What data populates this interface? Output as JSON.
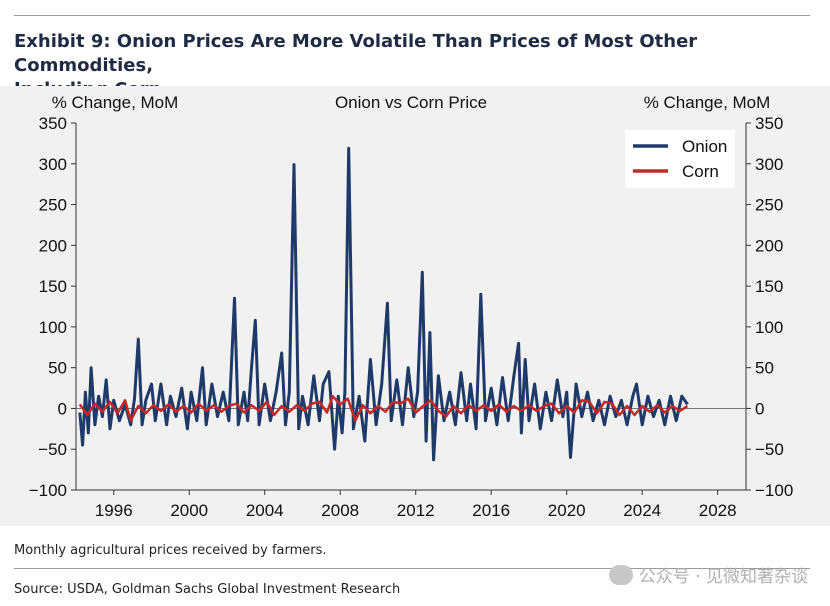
{
  "header": {
    "title_line1": "Exhibit 9: Onion Prices Are More Volatile Than Prices of Most Other Commodities,",
    "title_line2": "Including Corn"
  },
  "footer": {
    "note": "Monthly agricultural prices received by farmers.",
    "source": "Source: USDA, Goldman Sachs Global Investment Research",
    "watermark": "公众号 · 见微知著杂谈"
  },
  "chart_data": {
    "type": "line",
    "title": "Onion vs Corn Price",
    "ylabel_left": "% Change, MoM",
    "ylabel_right": "% Change, MoM",
    "ylim": [
      -100,
      350
    ],
    "xlim": [
      1994.0,
      2029.5
    ],
    "yticks": [
      -100,
      -50,
      0,
      50,
      100,
      150,
      200,
      250,
      300,
      350
    ],
    "xticks": [
      1996,
      2000,
      2004,
      2008,
      2012,
      2016,
      2020,
      2024,
      2028
    ],
    "legend_position": "top-right",
    "grid": false,
    "series": [
      {
        "name": "Onion",
        "color": "#1f3a68",
        "points": [
          [
            1994.2,
            -5
          ],
          [
            1994.35,
            -45
          ],
          [
            1994.5,
            20
          ],
          [
            1994.65,
            -30
          ],
          [
            1994.8,
            50
          ],
          [
            1995.0,
            -20
          ],
          [
            1995.2,
            15
          ],
          [
            1995.4,
            -10
          ],
          [
            1995.6,
            35
          ],
          [
            1995.8,
            -25
          ],
          [
            1996.0,
            10
          ],
          [
            1996.3,
            -15
          ],
          [
            1996.6,
            5
          ],
          [
            1996.9,
            -20
          ],
          [
            1997.1,
            12
          ],
          [
            1997.3,
            85
          ],
          [
            1997.5,
            -20
          ],
          [
            1997.7,
            10
          ],
          [
            1998.0,
            30
          ],
          [
            1998.2,
            -15
          ],
          [
            1998.5,
            30
          ],
          [
            1998.8,
            -20
          ],
          [
            1999.0,
            15
          ],
          [
            1999.3,
            -10
          ],
          [
            1999.6,
            25
          ],
          [
            1999.9,
            -25
          ],
          [
            2000.1,
            20
          ],
          [
            2000.4,
            -15
          ],
          [
            2000.7,
            50
          ],
          [
            2000.9,
            -20
          ],
          [
            2001.2,
            30
          ],
          [
            2001.5,
            -10
          ],
          [
            2001.8,
            20
          ],
          [
            2002.1,
            -15
          ],
          [
            2002.4,
            135
          ],
          [
            2002.6,
            -20
          ],
          [
            2002.9,
            20
          ],
          [
            2003.1,
            -15
          ],
          [
            2003.3,
            50
          ],
          [
            2003.5,
            108
          ],
          [
            2003.7,
            -20
          ],
          [
            2004.0,
            30
          ],
          [
            2004.3,
            -15
          ],
          [
            2004.6,
            20
          ],
          [
            2004.9,
            68
          ],
          [
            2005.1,
            -20
          ],
          [
            2005.3,
            20
          ],
          [
            2005.55,
            299
          ],
          [
            2005.8,
            -25
          ],
          [
            2006.0,
            15
          ],
          [
            2006.3,
            -20
          ],
          [
            2006.6,
            40
          ],
          [
            2006.9,
            -15
          ],
          [
            2007.1,
            30
          ],
          [
            2007.4,
            45
          ],
          [
            2007.7,
            -50
          ],
          [
            2007.9,
            15
          ],
          [
            2008.1,
            -30
          ],
          [
            2008.25,
            20
          ],
          [
            2008.45,
            319
          ],
          [
            2008.7,
            -25
          ],
          [
            2009.0,
            15
          ],
          [
            2009.3,
            -40
          ],
          [
            2009.6,
            60
          ],
          [
            2009.9,
            -20
          ],
          [
            2010.2,
            30
          ],
          [
            2010.5,
            129
          ],
          [
            2010.7,
            -15
          ],
          [
            2011.0,
            35
          ],
          [
            2011.3,
            -20
          ],
          [
            2011.6,
            50
          ],
          [
            2011.9,
            -10
          ],
          [
            2012.1,
            20
          ],
          [
            2012.35,
            167
          ],
          [
            2012.55,
            -40
          ],
          [
            2012.75,
            93
          ],
          [
            2012.95,
            -63
          ],
          [
            2013.2,
            40
          ],
          [
            2013.5,
            -15
          ],
          [
            2013.8,
            20
          ],
          [
            2014.1,
            -20
          ],
          [
            2014.4,
            44
          ],
          [
            2014.7,
            -15
          ],
          [
            2014.9,
            30
          ],
          [
            2015.2,
            -25
          ],
          [
            2015.45,
            140
          ],
          [
            2015.7,
            -15
          ],
          [
            2016.0,
            25
          ],
          [
            2016.3,
            -20
          ],
          [
            2016.6,
            38
          ],
          [
            2016.9,
            -15
          ],
          [
            2017.2,
            40
          ],
          [
            2017.45,
            80
          ],
          [
            2017.6,
            -30
          ],
          [
            2017.8,
            60
          ],
          [
            2018.0,
            -15
          ],
          [
            2018.3,
            30
          ],
          [
            2018.6,
            -25
          ],
          [
            2018.9,
            20
          ],
          [
            2019.2,
            -15
          ],
          [
            2019.5,
            35
          ],
          [
            2019.8,
            -10
          ],
          [
            2020.0,
            20
          ],
          [
            2020.2,
            -60
          ],
          [
            2020.5,
            30
          ],
          [
            2020.8,
            -10
          ],
          [
            2021.1,
            20
          ],
          [
            2021.4,
            -15
          ],
          [
            2021.7,
            10
          ],
          [
            2022.0,
            -20
          ],
          [
            2022.3,
            15
          ],
          [
            2022.6,
            -10
          ],
          [
            2022.9,
            10
          ],
          [
            2023.2,
            -20
          ],
          [
            2023.5,
            15
          ],
          [
            2023.7,
            30
          ],
          [
            2024.0,
            -20
          ],
          [
            2024.3,
            15
          ],
          [
            2024.6,
            -10
          ],
          [
            2024.9,
            10
          ],
          [
            2025.2,
            -20
          ],
          [
            2025.5,
            15
          ],
          [
            2025.8,
            -15
          ],
          [
            2026.1,
            15
          ],
          [
            2026.4,
            5
          ]
        ]
      },
      {
        "name": "Corn",
        "color": "#c62828",
        "points": [
          [
            1994.2,
            5
          ],
          [
            1994.6,
            -8
          ],
          [
            1995.0,
            6
          ],
          [
            1995.4,
            -4
          ],
          [
            1995.8,
            8
          ],
          [
            1996.2,
            -6
          ],
          [
            1996.6,
            10
          ],
          [
            1996.9,
            -15
          ],
          [
            1997.3,
            3
          ],
          [
            1997.7,
            -6
          ],
          [
            1998.1,
            4
          ],
          [
            1998.5,
            -3
          ],
          [
            1998.9,
            5
          ],
          [
            1999.3,
            -4
          ],
          [
            1999.7,
            3
          ],
          [
            2000.1,
            -5
          ],
          [
            2000.5,
            6
          ],
          [
            2000.9,
            -3
          ],
          [
            2001.3,
            4
          ],
          [
            2001.7,
            -4
          ],
          [
            2002.1,
            3
          ],
          [
            2002.5,
            6
          ],
          [
            2002.9,
            -5
          ],
          [
            2003.3,
            4
          ],
          [
            2003.7,
            -3
          ],
          [
            2004.1,
            8
          ],
          [
            2004.5,
            -8
          ],
          [
            2004.9,
            3
          ],
          [
            2005.3,
            -4
          ],
          [
            2005.7,
            4
          ],
          [
            2006.1,
            -3
          ],
          [
            2006.5,
            6
          ],
          [
            2006.9,
            8
          ],
          [
            2007.3,
            -5
          ],
          [
            2007.6,
            15
          ],
          [
            2008.0,
            5
          ],
          [
            2008.4,
            12
          ],
          [
            2008.8,
            -15
          ],
          [
            2009.2,
            4
          ],
          [
            2009.6,
            -6
          ],
          [
            2010.0,
            3
          ],
          [
            2010.4,
            -4
          ],
          [
            2010.8,
            8
          ],
          [
            2011.2,
            6
          ],
          [
            2011.6,
            12
          ],
          [
            2012.0,
            -5
          ],
          [
            2012.4,
            3
          ],
          [
            2012.8,
            10
          ],
          [
            2013.2,
            -3
          ],
          [
            2013.6,
            -10
          ],
          [
            2014.0,
            3
          ],
          [
            2014.4,
            -6
          ],
          [
            2014.8,
            4
          ],
          [
            2015.2,
            -3
          ],
          [
            2015.6,
            4
          ],
          [
            2016.0,
            -3
          ],
          [
            2016.4,
            5
          ],
          [
            2016.8,
            -4
          ],
          [
            2017.2,
            3
          ],
          [
            2017.6,
            -3
          ],
          [
            2018.0,
            4
          ],
          [
            2018.4,
            -3
          ],
          [
            2018.8,
            3
          ],
          [
            2019.2,
            6
          ],
          [
            2019.6,
            -6
          ],
          [
            2020.0,
            3
          ],
          [
            2020.4,
            -5
          ],
          [
            2020.8,
            10
          ],
          [
            2021.2,
            8
          ],
          [
            2021.6,
            -6
          ],
          [
            2022.0,
            8
          ],
          [
            2022.4,
            6
          ],
          [
            2022.8,
            -8
          ],
          [
            2023.2,
            3
          ],
          [
            2023.6,
            -8
          ],
          [
            2024.0,
            3
          ],
          [
            2024.4,
            -4
          ],
          [
            2024.8,
            4
          ],
          [
            2025.2,
            -5
          ],
          [
            2025.6,
            3
          ],
          [
            2026.0,
            -3
          ],
          [
            2026.4,
            3
          ]
        ]
      }
    ]
  }
}
